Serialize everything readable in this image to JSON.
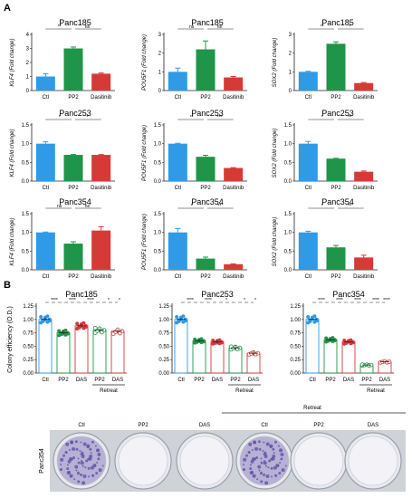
{
  "panel_labels": {
    "a": "A",
    "b": "B"
  },
  "colors": {
    "ctl": "#2f9be6",
    "pp2": "#1e9548",
    "das": "#d63a36",
    "dish_bg": "#6e7278",
    "stain": "#5a4fa0"
  },
  "chart_data": [
    {
      "type": "bar",
      "title": "Panc185",
      "ylabel": "KLF4 (Fold change)",
      "categories": [
        "Ctl",
        "PP2",
        "Dasitinib"
      ],
      "values": [
        1.0,
        3.0,
        1.2
      ],
      "errors": [
        0.2,
        0.1,
        0.05
      ],
      "ylim": [
        0,
        4
      ],
      "yticks": [
        "0",
        "1",
        "2",
        "3",
        "4"
      ],
      "sig": [
        "**",
        "ns"
      ]
    },
    {
      "type": "bar",
      "title": "Panc185",
      "ylabel": "POU5F1 (Fold change)",
      "categories": [
        "Ctl",
        "PP2",
        "Dasitinib"
      ],
      "values": [
        1.0,
        2.2,
        0.7
      ],
      "errors": [
        0.2,
        0.45,
        0.05
      ],
      "ylim": [
        0,
        3
      ],
      "yticks": [
        "0",
        "1",
        "2",
        "3"
      ],
      "sig": [
        "ns",
        "ns"
      ]
    },
    {
      "type": "bar",
      "title": "Panc185",
      "ylabel": "SOX2 (Fold change)",
      "categories": [
        "Ctl",
        "PP2",
        "Dasitinib"
      ],
      "values": [
        1.0,
        2.5,
        0.4
      ],
      "errors": [
        0.03,
        0.1,
        0.03
      ],
      "ylim": [
        0,
        3
      ],
      "yticks": [
        "0",
        "1",
        "2",
        "3"
      ],
      "sig": [
        "**",
        "*"
      ]
    },
    {
      "type": "bar",
      "title": "Panc253",
      "ylabel": "KLF4 (Fold change)",
      "categories": [
        "Ctl",
        "PP2",
        "Dasitinib"
      ],
      "values": [
        1.0,
        0.7,
        0.7
      ],
      "errors": [
        0.05,
        0.01,
        0.01
      ],
      "ylim": [
        0,
        1.5
      ],
      "yticks": [
        "0.0",
        "0.5",
        "1.0",
        "1.5"
      ],
      "sig": [
        "*",
        "*"
      ]
    },
    {
      "type": "bar",
      "title": "Panc253",
      "ylabel": "POU5F1 (Fold change)",
      "categories": [
        "Ctl",
        "PP2",
        "Dasitinib"
      ],
      "values": [
        1.0,
        0.65,
        0.35
      ],
      "errors": [
        0.01,
        0.04,
        0.01
      ],
      "ylim": [
        0,
        1.5
      ],
      "yticks": [
        "0.0",
        "0.5",
        "1.0",
        "1.5"
      ],
      "sig": [
        "**",
        "***"
      ]
    },
    {
      "type": "bar",
      "title": "Panc253",
      "ylabel": "SOX2 (Fold change)",
      "categories": [
        "Ctl",
        "PP2",
        "Dasitinib"
      ],
      "values": [
        1.0,
        0.6,
        0.25
      ],
      "errors": [
        0.06,
        0.01,
        0.02
      ],
      "ylim": [
        0,
        1.5
      ],
      "yticks": [
        "0.0",
        "0.5",
        "1.0",
        "1.5"
      ],
      "sig": [
        "*",
        "**"
      ]
    },
    {
      "type": "bar",
      "title": "Panc354",
      "ylabel": "KLF4 (Fold change)",
      "categories": [
        "Ctl",
        "PP2",
        "Dasitinib"
      ],
      "values": [
        1.0,
        0.7,
        1.05
      ],
      "errors": [
        0.01,
        0.05,
        0.1
      ],
      "ylim": [
        0,
        1.5
      ],
      "yticks": [
        "0.0",
        "0.5",
        "1.0",
        "1.5"
      ],
      "sig": [
        "ns",
        "ns"
      ]
    },
    {
      "type": "bar",
      "title": "Panc354",
      "ylabel": "POU5F1 (Fold change)",
      "categories": [
        "Ctl",
        "PP2",
        "Dasitinib"
      ],
      "values": [
        1.0,
        0.3,
        0.15
      ],
      "errors": [
        0.1,
        0.04,
        0.01
      ],
      "ylim": [
        0,
        1.5
      ],
      "yticks": [
        "0.0",
        "0.5",
        "1.0",
        "1.5"
      ],
      "sig": [
        "*",
        "**"
      ]
    },
    {
      "type": "bar",
      "title": "Panc354",
      "ylabel": "SOX2 (Fold change)",
      "categories": [
        "Ctl",
        "PP2",
        "Dasitinib"
      ],
      "values": [
        1.0,
        0.6,
        0.33
      ],
      "errors": [
        0.03,
        0.05,
        0.06
      ],
      "ylim": [
        0,
        1.5
      ],
      "yticks": [
        "0.0",
        "0.5",
        "1.0",
        "1.5"
      ],
      "sig": [
        "*",
        "**"
      ]
    },
    {
      "type": "scatter",
      "title": "Panc185",
      "ylabel": "Colony efficiency (O.D.)",
      "categories": [
        "Ctl",
        "PP2",
        "DAS",
        "PP2",
        "DAS"
      ],
      "group_label": "Retreat",
      "values": [
        1.0,
        0.75,
        0.88,
        0.8,
        0.78
      ],
      "errors": [
        0.03,
        0.05,
        0.04,
        0.04,
        0.04
      ],
      "ylim": [
        0,
        1.25
      ],
      "yticks": [
        "0.00",
        "0.25",
        "0.50",
        "0.75",
        "1.00",
        "1.25"
      ],
      "sig": [
        "****",
        "****",
        "****",
        "*",
        "*"
      ]
    },
    {
      "type": "scatter",
      "title": "Panc253",
      "categories": [
        "Ctl",
        "PP2",
        "DAS",
        "PP2",
        "DAS"
      ],
      "group_label": "Retreat",
      "values": [
        1.0,
        0.6,
        0.58,
        0.47,
        0.37
      ],
      "errors": [
        0.03,
        0.04,
        0.05,
        0.05,
        0.05
      ],
      "ylim": [
        0,
        1.25
      ],
      "yticks": [
        "0.00",
        "0.25",
        "0.50",
        "0.75",
        "1.00",
        "1.25"
      ],
      "sig": [
        "****",
        "****",
        "*",
        "*",
        "*"
      ]
    },
    {
      "type": "scatter",
      "title": "Panc354",
      "categories": [
        "Ctl",
        "PP2",
        "DAS",
        "PP2",
        "DAS"
      ],
      "group_label": "Retreat",
      "values": [
        1.0,
        0.62,
        0.58,
        0.15,
        0.21
      ],
      "errors": [
        0.01,
        0.03,
        0.02,
        0.01,
        0.01
      ],
      "ylim": [
        0,
        1.25
      ],
      "yticks": [
        "0.00",
        "0.25",
        "0.50",
        "0.75",
        "1.00",
        "1.25"
      ],
      "sig": [
        "****",
        "****",
        "****",
        "****",
        "****"
      ]
    }
  ],
  "photo": {
    "side_label": "Panc354",
    "retreat_label": "Retreat",
    "dish_labels": [
      "Ctl",
      "PP2",
      "DAS",
      "Ctl",
      "PP2",
      "DAS"
    ]
  }
}
